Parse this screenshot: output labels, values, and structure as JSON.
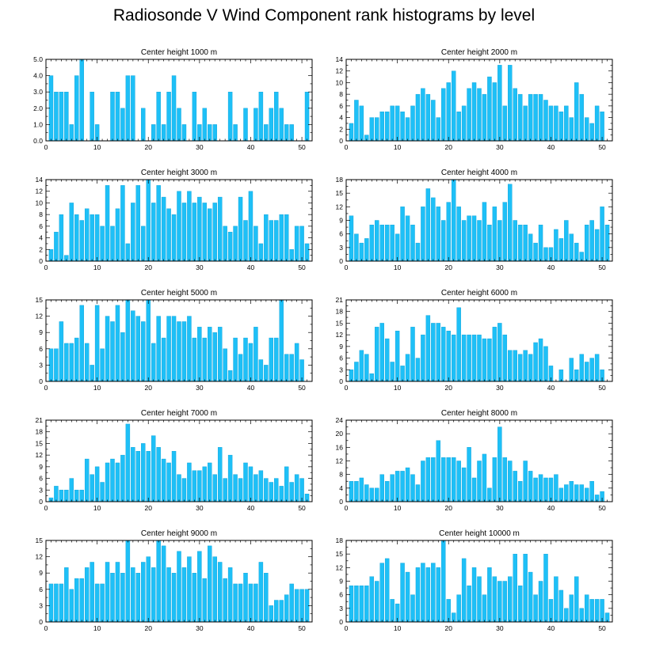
{
  "title": "Radiosonde V Wind Component rank histograms by level",
  "colors": {
    "bar": "#1ec0f7",
    "bar_edge": "#0a9fd6",
    "axis": "#000000"
  },
  "chart_data": [
    {
      "type": "bar",
      "title": "Center height 1000 m",
      "x": [
        1,
        2,
        3,
        4,
        5,
        6,
        7,
        8,
        9,
        10,
        11,
        12,
        13,
        14,
        15,
        16,
        17,
        18,
        19,
        20,
        21,
        22,
        23,
        24,
        25,
        26,
        27,
        28,
        29,
        30,
        31,
        32,
        33,
        34,
        35,
        36,
        37,
        38,
        39,
        40,
        41,
        42,
        43,
        44,
        45,
        46,
        47,
        48,
        49,
        50,
        51
      ],
      "values": [
        4,
        3,
        3,
        3,
        1,
        4,
        5,
        0,
        3,
        1,
        0,
        0,
        3,
        3,
        2,
        4,
        4,
        0,
        2,
        0,
        1,
        3,
        1,
        3,
        4,
        2,
        1,
        0,
        3,
        1,
        2,
        1,
        1,
        0,
        0,
        3,
        1,
        0,
        2,
        0,
        2,
        3,
        1,
        2,
        3,
        2,
        1,
        1,
        0,
        0,
        3
      ],
      "xlim": [
        0,
        52
      ],
      "ylim": [
        0,
        5
      ],
      "xticks": [
        "0",
        "10",
        "20",
        "30",
        "40",
        "50"
      ],
      "yticks": [
        "0.0",
        "1.0",
        "2.0",
        "3.0",
        "4.0",
        "5.0"
      ]
    },
    {
      "type": "bar",
      "title": "Center height 2000 m",
      "x": [
        1,
        2,
        3,
        4,
        5,
        6,
        7,
        8,
        9,
        10,
        11,
        12,
        13,
        14,
        15,
        16,
        17,
        18,
        19,
        20,
        21,
        22,
        23,
        24,
        25,
        26,
        27,
        28,
        29,
        30,
        31,
        32,
        33,
        34,
        35,
        36,
        37,
        38,
        39,
        40,
        41,
        42,
        43,
        44,
        45,
        46,
        47,
        48,
        49,
        50,
        51
      ],
      "values": [
        3,
        7,
        6,
        1,
        4,
        4,
        5,
        5,
        6,
        6,
        5,
        4,
        6,
        8,
        9,
        8,
        7,
        4,
        9,
        10,
        12,
        5,
        6,
        9,
        10,
        9,
        8,
        11,
        10,
        13,
        6,
        13,
        9,
        8,
        6,
        8,
        8,
        8,
        7,
        6,
        6,
        5,
        6,
        4,
        10,
        8,
        4,
        3,
        6,
        5,
        0
      ],
      "xlim": [
        0,
        52
      ],
      "ylim": [
        0,
        14
      ],
      "xticks": [
        "0",
        "10",
        "20",
        "30",
        "40",
        "50"
      ],
      "yticks": [
        "0",
        "2",
        "4",
        "6",
        "8",
        "10",
        "12",
        "14"
      ]
    },
    {
      "type": "bar",
      "title": "Center height 3000 m",
      "x": [
        1,
        2,
        3,
        4,
        5,
        6,
        7,
        8,
        9,
        10,
        11,
        12,
        13,
        14,
        15,
        16,
        17,
        18,
        19,
        20,
        21,
        22,
        23,
        24,
        25,
        26,
        27,
        28,
        29,
        30,
        31,
        32,
        33,
        34,
        35,
        36,
        37,
        38,
        39,
        40,
        41,
        42,
        43,
        44,
        45,
        46,
        47,
        48,
        49,
        50,
        51
      ],
      "values": [
        2,
        5,
        8,
        1,
        10,
        8,
        7,
        9,
        8,
        8,
        6,
        13,
        6,
        9,
        13,
        3,
        10,
        13,
        6,
        14,
        10,
        13,
        11,
        9,
        8,
        12,
        10,
        12,
        10,
        11,
        10,
        9,
        10,
        11,
        6,
        5,
        6,
        11,
        7,
        12,
        6,
        3,
        8,
        7,
        7,
        8,
        8,
        2,
        6,
        6,
        3
      ],
      "xlim": [
        0,
        52
      ],
      "ylim": [
        0,
        14
      ],
      "xticks": [
        "0",
        "10",
        "20",
        "30",
        "40",
        "50"
      ],
      "yticks": [
        "0",
        "2",
        "4",
        "6",
        "8",
        "10",
        "12",
        "14"
      ]
    },
    {
      "type": "bar",
      "title": "Center height 4000 m",
      "x": [
        1,
        2,
        3,
        4,
        5,
        6,
        7,
        8,
        9,
        10,
        11,
        12,
        13,
        14,
        15,
        16,
        17,
        18,
        19,
        20,
        21,
        22,
        23,
        24,
        25,
        26,
        27,
        28,
        29,
        30,
        31,
        32,
        33,
        34,
        35,
        36,
        37,
        38,
        39,
        40,
        41,
        42,
        43,
        44,
        45,
        46,
        47,
        48,
        49,
        50,
        51
      ],
      "values": [
        10,
        6,
        4,
        5,
        8,
        9,
        8,
        8,
        8,
        6,
        12,
        10,
        8,
        4,
        12,
        16,
        14,
        12,
        9,
        13,
        18,
        12,
        9,
        10,
        10,
        9,
        13,
        8,
        12,
        9,
        13,
        17,
        9,
        8,
        8,
        6,
        4,
        8,
        3,
        3,
        7,
        5,
        9,
        6,
        4,
        2,
        8,
        9,
        7,
        12,
        8
      ],
      "xlim": [
        0,
        52
      ],
      "ylim": [
        0,
        18
      ],
      "xticks": [
        "0",
        "10",
        "20",
        "30",
        "40",
        "50"
      ],
      "yticks": [
        "0",
        "3",
        "6",
        "9",
        "12",
        "15",
        "18"
      ]
    },
    {
      "type": "bar",
      "title": "Center height 5000 m",
      "x": [
        1,
        2,
        3,
        4,
        5,
        6,
        7,
        8,
        9,
        10,
        11,
        12,
        13,
        14,
        15,
        16,
        17,
        18,
        19,
        20,
        21,
        22,
        23,
        24,
        25,
        26,
        27,
        28,
        29,
        30,
        31,
        32,
        33,
        34,
        35,
        36,
        37,
        38,
        39,
        40,
        41,
        42,
        43,
        44,
        45,
        46,
        47,
        48,
        49,
        50,
        51
      ],
      "values": [
        6,
        6,
        11,
        7,
        7,
        8,
        14,
        7,
        3,
        14,
        6,
        12,
        11,
        14,
        9,
        15,
        13,
        12,
        11,
        15,
        7,
        12,
        8,
        12,
        12,
        11,
        11,
        12,
        8,
        10,
        8,
        10,
        9,
        10,
        6,
        2,
        8,
        5,
        8,
        7,
        10,
        4,
        3,
        8,
        8,
        15,
        5,
        5,
        7,
        4,
        0
      ],
      "xlim": [
        0,
        52
      ],
      "ylim": [
        0,
        15
      ],
      "xticks": [
        "0",
        "10",
        "20",
        "30",
        "40",
        "50"
      ],
      "yticks": [
        "0",
        "3",
        "6",
        "9",
        "12",
        "15"
      ]
    },
    {
      "type": "bar",
      "title": "Center height 6000 m",
      "x": [
        1,
        2,
        3,
        4,
        5,
        6,
        7,
        8,
        9,
        10,
        11,
        12,
        13,
        14,
        15,
        16,
        17,
        18,
        19,
        20,
        21,
        22,
        23,
        24,
        25,
        26,
        27,
        28,
        29,
        30,
        31,
        32,
        33,
        34,
        35,
        36,
        37,
        38,
        39,
        40,
        41,
        42,
        43,
        44,
        45,
        46,
        47,
        48,
        49,
        50,
        51
      ],
      "values": [
        3,
        5,
        8,
        7,
        2,
        14,
        15,
        11,
        5,
        13,
        4,
        7,
        14,
        6,
        12,
        17,
        15,
        15,
        14,
        13,
        12,
        19,
        12,
        12,
        12,
        12,
        11,
        11,
        14,
        15,
        12,
        8,
        8,
        7,
        8,
        7,
        10,
        11,
        9,
        4,
        0,
        3,
        0,
        6,
        3,
        7,
        5,
        6,
        7,
        3,
        0
      ],
      "xlim": [
        0,
        52
      ],
      "ylim": [
        0,
        21
      ],
      "xticks": [
        "0",
        "10",
        "20",
        "30",
        "40",
        "50"
      ],
      "yticks": [
        "0",
        "3",
        "6",
        "9",
        "12",
        "15",
        "18",
        "21"
      ]
    },
    {
      "type": "bar",
      "title": "Center height 7000 m",
      "x": [
        1,
        2,
        3,
        4,
        5,
        6,
        7,
        8,
        9,
        10,
        11,
        12,
        13,
        14,
        15,
        16,
        17,
        18,
        19,
        20,
        21,
        22,
        23,
        24,
        25,
        26,
        27,
        28,
        29,
        30,
        31,
        32,
        33,
        34,
        35,
        36,
        37,
        38,
        39,
        40,
        41,
        42,
        43,
        44,
        45,
        46,
        47,
        48,
        49,
        50,
        51
      ],
      "values": [
        1,
        4,
        3,
        3,
        6,
        3,
        3,
        11,
        7,
        9,
        5,
        10,
        11,
        10,
        12,
        20,
        14,
        13,
        15,
        13,
        17,
        14,
        11,
        10,
        13,
        7,
        6,
        10,
        8,
        8,
        9,
        10,
        7,
        14,
        6,
        12,
        7,
        6,
        10,
        9,
        7,
        8,
        6,
        5,
        6,
        4,
        9,
        5,
        7,
        6,
        2
      ],
      "xlim": [
        0,
        52
      ],
      "ylim": [
        0,
        21
      ],
      "xticks": [
        "0",
        "10",
        "20",
        "30",
        "40",
        "50"
      ],
      "yticks": [
        "0",
        "3",
        "6",
        "9",
        "12",
        "15",
        "18",
        "21"
      ]
    },
    {
      "type": "bar",
      "title": "Center height 8000 m",
      "x": [
        1,
        2,
        3,
        4,
        5,
        6,
        7,
        8,
        9,
        10,
        11,
        12,
        13,
        14,
        15,
        16,
        17,
        18,
        19,
        20,
        21,
        22,
        23,
        24,
        25,
        26,
        27,
        28,
        29,
        30,
        31,
        32,
        33,
        34,
        35,
        36,
        37,
        38,
        39,
        40,
        41,
        42,
        43,
        44,
        45,
        46,
        47,
        48,
        49,
        50,
        51
      ],
      "values": [
        6,
        6,
        7,
        5,
        4,
        4,
        8,
        6,
        8,
        9,
        9,
        10,
        8,
        5,
        12,
        13,
        13,
        18,
        13,
        13,
        13,
        12,
        10,
        16,
        7,
        12,
        14,
        4,
        13,
        22,
        13,
        12,
        9,
        6,
        12,
        9,
        7,
        8,
        7,
        7,
        8,
        4,
        5,
        6,
        5,
        5,
        4,
        6,
        2,
        3,
        0
      ],
      "xlim": [
        0,
        52
      ],
      "ylim": [
        0,
        24
      ],
      "xticks": [
        "0",
        "10",
        "20",
        "30",
        "40",
        "50"
      ],
      "yticks": [
        "0",
        "4",
        "8",
        "12",
        "16",
        "20",
        "24"
      ]
    },
    {
      "type": "bar",
      "title": "Center height 9000 m",
      "x": [
        1,
        2,
        3,
        4,
        5,
        6,
        7,
        8,
        9,
        10,
        11,
        12,
        13,
        14,
        15,
        16,
        17,
        18,
        19,
        20,
        21,
        22,
        23,
        24,
        25,
        26,
        27,
        28,
        29,
        30,
        31,
        32,
        33,
        34,
        35,
        36,
        37,
        38,
        39,
        40,
        41,
        42,
        43,
        44,
        45,
        46,
        47,
        48,
        49,
        50,
        51
      ],
      "values": [
        7,
        7,
        7,
        10,
        6,
        8,
        8,
        10,
        11,
        7,
        7,
        11,
        9,
        11,
        9,
        15,
        10,
        9,
        11,
        12,
        10,
        15,
        14,
        10,
        9,
        13,
        10,
        12,
        9,
        13,
        8,
        14,
        12,
        11,
        8,
        10,
        7,
        7,
        9,
        7,
        7,
        11,
        9,
        3,
        4,
        4,
        5,
        7,
        6,
        6,
        6
      ],
      "xlim": [
        0,
        52
      ],
      "ylim": [
        0,
        15
      ],
      "xticks": [
        "0",
        "10",
        "20",
        "30",
        "40",
        "50"
      ],
      "yticks": [
        "0",
        "3",
        "6",
        "9",
        "12",
        "15"
      ]
    },
    {
      "type": "bar",
      "title": "Center height 10000 m",
      "x": [
        1,
        2,
        3,
        4,
        5,
        6,
        7,
        8,
        9,
        10,
        11,
        12,
        13,
        14,
        15,
        16,
        17,
        18,
        19,
        20,
        21,
        22,
        23,
        24,
        25,
        26,
        27,
        28,
        29,
        30,
        31,
        32,
        33,
        34,
        35,
        36,
        37,
        38,
        39,
        40,
        41,
        42,
        43,
        44,
        45,
        46,
        47,
        48,
        49,
        50,
        51
      ],
      "values": [
        8,
        8,
        8,
        8,
        10,
        9,
        13,
        14,
        5,
        4,
        13,
        11,
        6,
        12,
        13,
        12,
        13,
        12,
        18,
        5,
        2,
        6,
        14,
        8,
        12,
        10,
        6,
        12,
        10,
        9,
        9,
        10,
        15,
        8,
        15,
        11,
        6,
        9,
        15,
        5,
        10,
        7,
        3,
        6,
        10,
        3,
        6,
        5,
        5,
        5,
        2
      ],
      "xlim": [
        0,
        52
      ],
      "ylim": [
        0,
        18
      ],
      "xticks": [
        "0",
        "10",
        "20",
        "30",
        "40",
        "50"
      ],
      "yticks": [
        "0",
        "3",
        "6",
        "9",
        "12",
        "15",
        "18"
      ]
    }
  ]
}
